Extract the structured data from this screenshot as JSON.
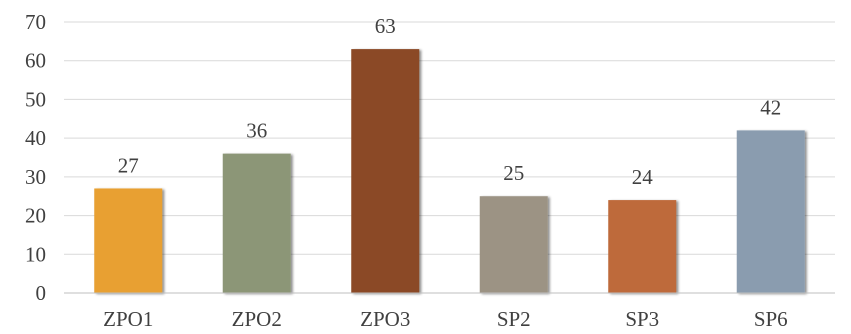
{
  "chart_data": {
    "type": "bar",
    "categories": [
      "ZPO1",
      "ZPO2",
      "ZPO3",
      "SP2",
      "SP3",
      "SP6"
    ],
    "values": [
      27,
      36,
      63,
      25,
      24,
      42
    ],
    "colors": [
      "#E8A030",
      "#8C9677",
      "#8B4A26",
      "#9C9384",
      "#BE6A3A",
      "#8A9CAF"
    ],
    "title": "",
    "xlabel": "",
    "ylabel": "",
    "ylim": [
      0,
      70
    ],
    "yticks": [
      0,
      10,
      20,
      30,
      40,
      50,
      60,
      70
    ],
    "grid": true,
    "legend": "none"
  }
}
